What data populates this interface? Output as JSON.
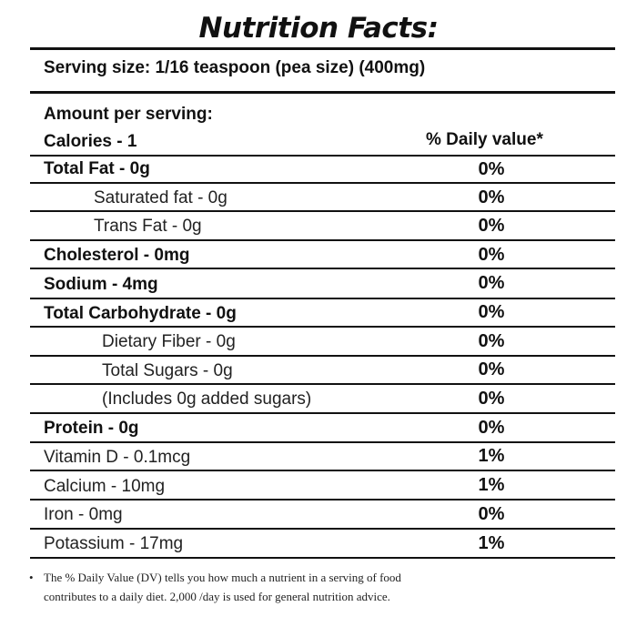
{
  "title": "Nutrition Facts:",
  "serving_size": "Serving size: 1/16 teaspoon (pea size) (400mg)",
  "amount_per_serving": "Amount per serving:",
  "calories": "Calories - 1",
  "daily_value_header": "% Daily value*",
  "rows": [
    {
      "label": "Total Fat - 0g",
      "value": "0%"
    },
    {
      "label": "Saturated fat - 0g",
      "value": "0%"
    },
    {
      "label": "Trans Fat - 0g",
      "value": "0%"
    },
    {
      "label": "Cholesterol - 0mg",
      "value": "0%"
    },
    {
      "label": "Sodium - 4mg",
      "value": "0%"
    },
    {
      "label": "Total Carbohydrate - 0g",
      "value": "0%"
    },
    {
      "label": "Dietary Fiber - 0g",
      "value": "0%"
    },
    {
      "label": "Total Sugars - 0g",
      "value": "0%"
    },
    {
      "label": "(Includes 0g added sugars)",
      "value": "0%"
    },
    {
      "label": "Protein - 0g",
      "value": "0%"
    },
    {
      "label": "Vitamin D - 0.1mcg",
      "value": "1%"
    },
    {
      "label": "Calcium - 10mg",
      "value": "1%"
    },
    {
      "label": "Iron - 0mg",
      "value": "0%"
    },
    {
      "label": "Potassium - 17mg",
      "value": "1%"
    }
  ],
  "footnote": {
    "bullet": "•",
    "line1": "The % Daily Value (DV) tells you how much a nutrient in a serving of food",
    "line2": "contributes to a daily diet. 2,000 /day is used for general nutrition advice."
  }
}
